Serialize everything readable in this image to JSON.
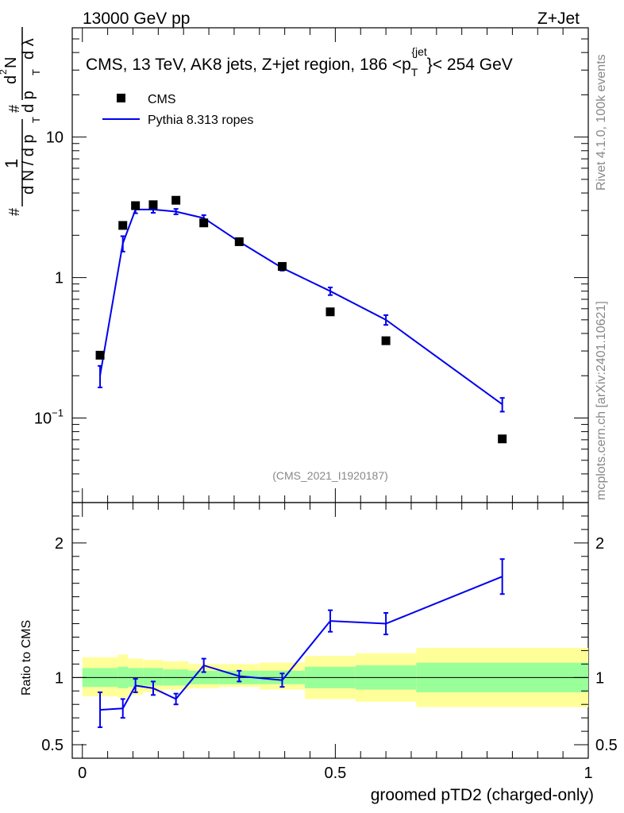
{
  "header": {
    "energy_label": "13000 GeV pp",
    "process_label": "Z+Jet"
  },
  "side_labels": {
    "rivet": "Rivet 4.1.0,  100k events",
    "mcplots": "mcplots.cern.ch [arXiv:2401.10621]"
  },
  "colors": {
    "mc_line": "#0000ee",
    "band_inner": "#99ff99",
    "band_outer": "#ffff99",
    "data_marker": "#000000"
  },
  "chart_data": [
    {
      "type": "scatter",
      "panel": "main",
      "title": "CMS, 13 TeV, AK8 jets, Z+jet region, 186 <p_T^{jet}< 254 GeV",
      "title_parts": {
        "main": "CMS, 13 TeV, AK8 jets, Z+jet region, 186 <p",
        "sub": "T",
        "sup": "{jet",
        "close": "}",
        "tail": "< 254 GeV"
      },
      "analysis_id": "(CMS_2021_I1920187)",
      "ylabel": "1/(dN/dp_T) d²N/(dp_T dλ)",
      "ylabel_parts": {
        "one": "1",
        "dn": "d N / d p",
        "sub_T": "T",
        "d2n": "d",
        "two": "2",
        "n": "N",
        "dpt": "d p",
        "dl": "d λ",
        "hash": "#"
      },
      "yscale": "log",
      "ylim": [
        0.025,
        60
      ],
      "xlim": [
        -0.02,
        1.0
      ],
      "y_ticks": [
        {
          "value": 0.1,
          "base": "10",
          "exp": "−1"
        },
        {
          "value": 1,
          "base": "1",
          "exp": ""
        },
        {
          "value": 10,
          "base": "10",
          "exp": ""
        }
      ],
      "legend_position": "top-left",
      "series": [
        {
          "name": "CMS",
          "kind": "data",
          "x": [
            0.035,
            0.08,
            0.105,
            0.14,
            0.185,
            0.24,
            0.31,
            0.395,
            0.49,
            0.6,
            0.83
          ],
          "y": [
            0.28,
            2.35,
            3.25,
            3.3,
            3.55,
            2.45,
            1.8,
            1.2,
            0.57,
            0.355,
            0.071
          ]
        },
        {
          "name": "Pythia 8.313 ropes",
          "kind": "mc",
          "x": [
            0.035,
            0.08,
            0.105,
            0.14,
            0.185,
            0.24,
            0.31,
            0.395,
            0.49,
            0.6,
            0.83
          ],
          "y": [
            0.2,
            1.75,
            3.05,
            3.05,
            2.95,
            2.65,
            1.8,
            1.17,
            0.8,
            0.5,
            0.125
          ],
          "err_lo": [
            0.035,
            0.22,
            0.18,
            0.16,
            0.13,
            0.13,
            0.08,
            0.05,
            0.05,
            0.04,
            0.014
          ],
          "err_hi": [
            0.035,
            0.22,
            0.18,
            0.16,
            0.13,
            0.13,
            0.08,
            0.05,
            0.05,
            0.04,
            0.014
          ]
        }
      ]
    },
    {
      "type": "line",
      "panel": "ratio",
      "xlabel": "groomed pTD2 (charged-only)",
      "ylabel": "Ratio to CMS",
      "ylim": [
        0.4,
        2.3
      ],
      "xlim": [
        -0.02,
        1.0
      ],
      "x_ticks": [
        0,
        0.5,
        1
      ],
      "x_tick_labels": [
        "0",
        "0.5",
        "1"
      ],
      "y_ticks": [
        0.5,
        1,
        2
      ],
      "y_tick_labels": [
        "0.5",
        "1",
        "2"
      ],
      "bands": {
        "edges": [
          0.0,
          0.07,
          0.09,
          0.12,
          0.16,
          0.21,
          0.27,
          0.35,
          0.44,
          0.54,
          0.66,
          1.0
        ],
        "inner_lo": [
          0.93,
          0.92,
          0.93,
          0.94,
          0.94,
          0.95,
          0.95,
          0.95,
          0.92,
          0.91,
          0.89
        ],
        "inner_hi": [
          1.07,
          1.08,
          1.07,
          1.07,
          1.06,
          1.05,
          1.05,
          1.05,
          1.08,
          1.09,
          1.11
        ],
        "outer_lo": [
          0.86,
          0.85,
          0.87,
          0.89,
          0.91,
          0.92,
          0.93,
          0.91,
          0.84,
          0.82,
          0.78
        ],
        "outer_hi": [
          1.15,
          1.17,
          1.14,
          1.13,
          1.12,
          1.1,
          1.1,
          1.11,
          1.16,
          1.18,
          1.22
        ]
      },
      "series": [
        {
          "name": "Pythia 8.313 ropes / CMS",
          "x": [
            0.035,
            0.08,
            0.105,
            0.14,
            0.185,
            0.24,
            0.31,
            0.395,
            0.49,
            0.6,
            0.83
          ],
          "y": [
            0.76,
            0.77,
            0.94,
            0.92,
            0.84,
            1.09,
            1.01,
            0.98,
            1.42,
            1.4,
            1.75
          ],
          "err_lo": [
            0.13,
            0.07,
            0.05,
            0.05,
            0.04,
            0.05,
            0.04,
            0.05,
            0.08,
            0.08,
            0.13
          ],
          "err_hi": [
            0.13,
            0.07,
            0.05,
            0.05,
            0.04,
            0.05,
            0.04,
            0.05,
            0.08,
            0.08,
            0.13
          ]
        }
      ]
    }
  ]
}
